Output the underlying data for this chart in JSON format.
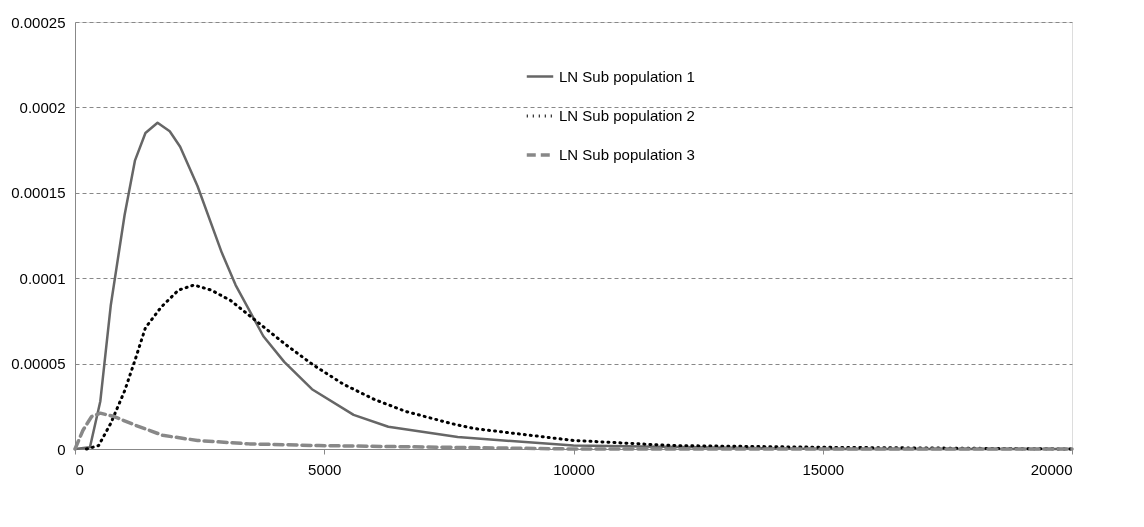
{
  "chart_data": {
    "type": "line",
    "xlim": [
      0,
      20000
    ],
    "xticks": [
      0,
      5000,
      10000,
      15000,
      20000
    ],
    "ylim": [
      0,
      0.00025
    ],
    "yticks": [
      {
        "value": 0,
        "label": "0"
      },
      {
        "value": 5e-05,
        "label": "0.00005"
      },
      {
        "value": 0.0001,
        "label": "0.0001"
      },
      {
        "value": 0.00015,
        "label": "0.00015"
      },
      {
        "value": 0.0002,
        "label": "0.0002"
      },
      {
        "value": 0.00025,
        "label": "0.00025"
      }
    ],
    "grid": "y",
    "legend": "top",
    "marker": "none",
    "series": [
      {
        "name": "LN Sub population 1",
        "color": "#666666",
        "line_style": "solid",
        "x": [
          0,
          300,
          508,
          717,
          995,
          1204,
          1413,
          1656,
          1900,
          2109,
          2457,
          2944,
          3222,
          3779,
          4197,
          4754,
          5589,
          6285,
          7677,
          10000,
          15000,
          20000
        ],
        "values": [
          0,
          1e-06,
          2.8e-05,
          8.4e-05,
          0.000137,
          0.000169,
          0.000185,
          0.000191,
          0.000186,
          0.000177,
          0.000154,
          0.000115,
          9.6e-05,
          6.6e-05,
          5.1e-05,
          3.5e-05,
          2e-05,
          1.3e-05,
          7e-06,
          2e-06,
          0,
          0
        ]
      },
      {
        "name": "LN Sub population 2",
        "color": "#000000",
        "line_style": "dotted",
        "x": [
          230,
          473,
          717,
          995,
          1204,
          1413,
          1726,
          2074,
          2387,
          2735,
          3118,
          3675,
          4232,
          4789,
          5380,
          6006,
          6633,
          7537,
          8000,
          10000,
          12000,
          15000,
          20000
        ],
        "values": [
          0,
          2e-06,
          1.5e-05,
          3.4e-05,
          5.2e-05,
          7.1e-05,
          8.3e-05,
          9.3e-05,
          9.6e-05,
          9.3e-05,
          8.7e-05,
          7.4e-05,
          6.1e-05,
          4.9e-05,
          3.8e-05,
          2.9e-05,
          2.2e-05,
          1.5e-05,
          1.2e-05,
          5e-06,
          2e-06,
          1e-06,
          0
        ]
      },
      {
        "name": "LN Sub population 3",
        "color": "#888888",
        "line_style": "dashed",
        "x": [
          0,
          160,
          334,
          508,
          786,
          1204,
          1760,
          2457,
          3500,
          4893,
          10000,
          20000
        ],
        "values": [
          0,
          1.1e-05,
          1.9e-05,
          2.1e-05,
          1.9e-05,
          1.4e-05,
          8e-06,
          5e-06,
          3e-06,
          2e-06,
          0,
          0
        ]
      }
    ]
  }
}
